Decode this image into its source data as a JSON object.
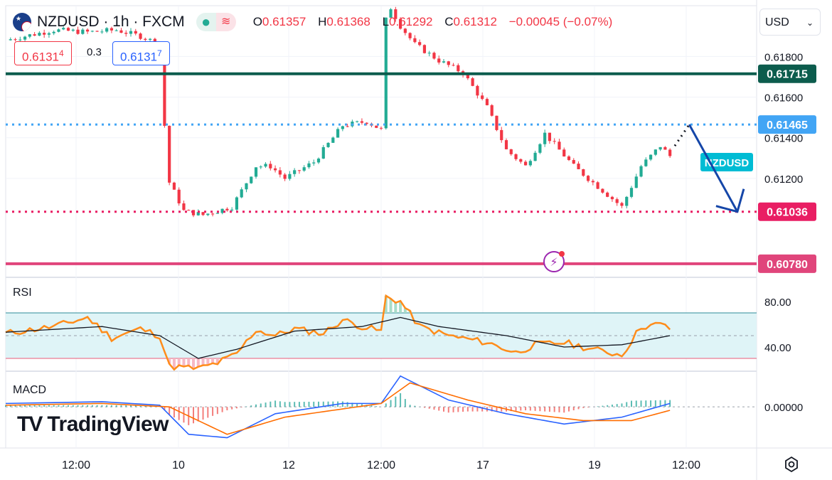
{
  "header": {
    "symbol": "NZDUSD · 1h · FXCM",
    "open_label": "O",
    "open": "0.61357",
    "high_label": "H",
    "high": "0.61368",
    "low_label": "L",
    "low": "0.61292",
    "close_label": "C",
    "close": "0.61312",
    "change": "−0.00045 (−0.07%)"
  },
  "trade": {
    "sell": "0.6131",
    "sell_sup": "4",
    "spread": "0.3",
    "buy": "0.6131",
    "buy_sup": "7"
  },
  "currency": {
    "value": "USD"
  },
  "panes": {
    "rsi_label": "RSI",
    "macd_label": "MACD"
  },
  "logo": {
    "text": "TradingView"
  },
  "colors": {
    "up": "#22ab94",
    "down": "#f23645",
    "resistance": "#0c5c4d",
    "current": "#42a5f5",
    "support_dotted": "#e91e63",
    "support": "#e0457b",
    "rsi_line": "#ff8c1a",
    "rsi_band": "#dff4f7",
    "macd_line": "#2962ff",
    "signal_line": "#ff6d00",
    "arrow": "#1546a8"
  },
  "chart_data": {
    "type": "line",
    "symbol": "NZDUSD",
    "interval": "1h",
    "price_axis": {
      "range": [
        0.6072,
        0.6205
      ],
      "ticks": [
        "0.61800",
        "0.61600",
        "0.61400",
        "0.61200"
      ]
    },
    "time_axis": [
      "12:00",
      "10",
      "12",
      "12:00",
      "17",
      "19",
      "12:00"
    ],
    "close_path": [
      {
        "t": 0,
        "price": 0.6188
      },
      {
        "t": 10,
        "price": 0.6193
      },
      {
        "t": 17,
        "price": 0.6192
      },
      {
        "t": 23,
        "price": 0.6193
      },
      {
        "t": 28,
        "price": 0.619
      },
      {
        "t": 32,
        "price": 0.6186
      },
      {
        "t": 33,
        "price": 0.6146
      },
      {
        "t": 34,
        "price": 0.6118
      },
      {
        "t": 37,
        "price": 0.6104
      },
      {
        "t": 41,
        "price": 0.6102
      },
      {
        "t": 47,
        "price": 0.6106
      },
      {
        "t": 52,
        "price": 0.6126
      },
      {
        "t": 55,
        "price": 0.6126
      },
      {
        "t": 58,
        "price": 0.612
      },
      {
        "t": 64,
        "price": 0.6128
      },
      {
        "t": 70,
        "price": 0.6146
      },
      {
        "t": 75,
        "price": 0.6148
      },
      {
        "t": 78,
        "price": 0.6144
      },
      {
        "t": 79,
        "price": 0.6198
      },
      {
        "t": 80,
        "price": 0.6204
      },
      {
        "t": 82,
        "price": 0.6195
      },
      {
        "t": 85,
        "price": 0.6186
      },
      {
        "t": 90,
        "price": 0.6178
      },
      {
        "t": 95,
        "price": 0.6172
      },
      {
        "t": 100,
        "price": 0.6155
      },
      {
        "t": 104,
        "price": 0.6134
      },
      {
        "t": 108,
        "price": 0.6126
      },
      {
        "t": 112,
        "price": 0.6142
      },
      {
        "t": 118,
        "price": 0.6126
      },
      {
        "t": 124,
        "price": 0.6114
      },
      {
        "t": 128,
        "price": 0.6106
      },
      {
        "t": 132,
        "price": 0.6126
      },
      {
        "t": 136,
        "price": 0.6136
      },
      {
        "t": 138,
        "price": 0.6131
      }
    ],
    "levels": [
      {
        "label": "0.61715",
        "price": 0.61715,
        "style": "solid",
        "color": "#0c5c4d"
      },
      {
        "label": "0.61465",
        "price": 0.61465,
        "style": "dotted",
        "color": "#42a5f5"
      },
      {
        "label": "0.61036",
        "price": 0.61036,
        "style": "dotted",
        "color": "#e91e63"
      },
      {
        "label": "0.60780",
        "price": 0.6078,
        "style": "solid",
        "color": "#e0457b"
      }
    ],
    "symbol_tag": "NZDUSD",
    "projection": [
      {
        "t": 139,
        "price": 0.6136
      },
      {
        "t": 142,
        "price": 0.61465
      },
      {
        "t": 152,
        "price": 0.61036
      }
    ],
    "rsi": {
      "range": [
        20,
        100
      ],
      "ticks": [
        "80.00",
        "40.00"
      ],
      "band": [
        30,
        70
      ],
      "mid": 50,
      "values": [
        {
          "t": 0,
          "v": 52
        },
        {
          "t": 10,
          "v": 58
        },
        {
          "t": 17,
          "v": 66
        },
        {
          "t": 22,
          "v": 48
        },
        {
          "t": 28,
          "v": 56
        },
        {
          "t": 32,
          "v": 50
        },
        {
          "t": 34,
          "v": 23
        },
        {
          "t": 40,
          "v": 21
        },
        {
          "t": 44,
          "v": 26
        },
        {
          "t": 48,
          "v": 34
        },
        {
          "t": 52,
          "v": 55
        },
        {
          "t": 56,
          "v": 50
        },
        {
          "t": 60,
          "v": 56
        },
        {
          "t": 66,
          "v": 52
        },
        {
          "t": 70,
          "v": 64
        },
        {
          "t": 74,
          "v": 58
        },
        {
          "t": 78,
          "v": 54
        },
        {
          "t": 79,
          "v": 84
        },
        {
          "t": 82,
          "v": 80
        },
        {
          "t": 86,
          "v": 58
        },
        {
          "t": 92,
          "v": 50
        },
        {
          "t": 100,
          "v": 44
        },
        {
          "t": 106,
          "v": 35
        },
        {
          "t": 110,
          "v": 42
        },
        {
          "t": 116,
          "v": 44
        },
        {
          "t": 122,
          "v": 38
        },
        {
          "t": 128,
          "v": 33
        },
        {
          "t": 132,
          "v": 58
        },
        {
          "t": 136,
          "v": 60
        },
        {
          "t": 138,
          "v": 56
        }
      ],
      "signal": [
        {
          "t": 0,
          "v": 53
        },
        {
          "t": 20,
          "v": 58
        },
        {
          "t": 32,
          "v": 50
        },
        {
          "t": 40,
          "v": 30
        },
        {
          "t": 48,
          "v": 38
        },
        {
          "t": 60,
          "v": 54
        },
        {
          "t": 74,
          "v": 58
        },
        {
          "t": 82,
          "v": 66
        },
        {
          "t": 90,
          "v": 58
        },
        {
          "t": 104,
          "v": 50
        },
        {
          "t": 116,
          "v": 40
        },
        {
          "t": 128,
          "v": 42
        },
        {
          "t": 138,
          "v": 50
        }
      ]
    },
    "macd": {
      "range": [
        -0.0012,
        0.001
      ],
      "ticks": [
        "0.00000"
      ],
      "macd": [
        {
          "t": 0,
          "v": 0.0001
        },
        {
          "t": 20,
          "v": 0.00015
        },
        {
          "t": 32,
          "v": 5e-05
        },
        {
          "t": 38,
          "v": -0.0008
        },
        {
          "t": 46,
          "v": -0.0009
        },
        {
          "t": 56,
          "v": -0.0002
        },
        {
          "t": 70,
          "v": 0.0001
        },
        {
          "t": 78,
          "v": 0.0001
        },
        {
          "t": 82,
          "v": 0.0009
        },
        {
          "t": 92,
          "v": 0.0002
        },
        {
          "t": 104,
          "v": -0.0002
        },
        {
          "t": 116,
          "v": -0.0005
        },
        {
          "t": 128,
          "v": -0.0003
        },
        {
          "t": 138,
          "v": 0.0001
        }
      ],
      "signal": [
        {
          "t": 0,
          "v": 5e-05
        },
        {
          "t": 20,
          "v": 0.0001
        },
        {
          "t": 34,
          "v": 0.0
        },
        {
          "t": 46,
          "v": -0.0008
        },
        {
          "t": 58,
          "v": -0.0003
        },
        {
          "t": 78,
          "v": 0.0001
        },
        {
          "t": 84,
          "v": 0.0007
        },
        {
          "t": 96,
          "v": 0.0002
        },
        {
          "t": 108,
          "v": -0.0002
        },
        {
          "t": 120,
          "v": -0.0004
        },
        {
          "t": 130,
          "v": -0.0004
        },
        {
          "t": 138,
          "v": -0.0001
        }
      ]
    },
    "grid": true,
    "legend": "top-left"
  }
}
